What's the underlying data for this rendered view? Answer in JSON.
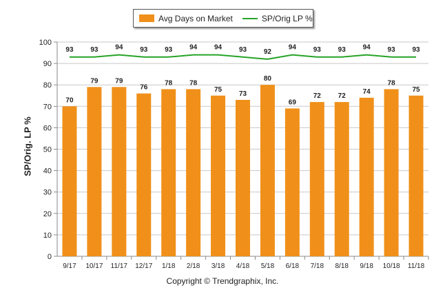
{
  "chart_data": {
    "type": "bar",
    "categories": [
      "9/17",
      "10/17",
      "11/17",
      "12/17",
      "1/18",
      "2/18",
      "3/18",
      "4/18",
      "5/18",
      "6/18",
      "7/18",
      "8/18",
      "9/18",
      "10/18",
      "11/18"
    ],
    "series": [
      {
        "name": "Avg Days on Market",
        "type": "bar",
        "color": "#f0901a",
        "values": [
          70,
          79,
          79,
          76,
          78,
          78,
          75,
          73,
          80,
          69,
          72,
          72,
          74,
          78,
          75
        ]
      },
      {
        "name": "SP/Orig LP %",
        "type": "line",
        "color": "#26a326",
        "values": [
          93,
          93,
          94,
          93,
          93,
          94,
          94,
          93,
          92,
          94,
          93,
          93,
          94,
          93,
          93
        ]
      }
    ],
    "ylabel": "SP/Orig. LP %",
    "xlabel": "",
    "ylim": [
      0,
      100
    ],
    "yticks": [
      0,
      10,
      20,
      30,
      40,
      50,
      60,
      70,
      80,
      90,
      100
    ],
    "grid": true,
    "legend_position": "top"
  },
  "footer": "Copyright © Trendgraphix, Inc."
}
